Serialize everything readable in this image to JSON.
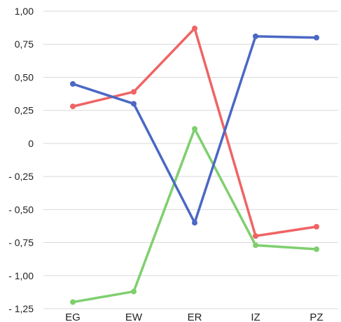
{
  "chart_data": {
    "type": "line",
    "categories": [
      "EG",
      "EW",
      "ER",
      "IZ",
      "PZ"
    ],
    "y_ticks": [
      "1,00",
      "0,75",
      "0,50",
      "0,25",
      "0",
      "- 0,25",
      "- 0,50",
      "- 0,75",
      "- 1,00",
      "- 1,25"
    ],
    "y_tick_values": [
      1.0,
      0.75,
      0.5,
      0.25,
      0,
      -0.25,
      -0.5,
      -0.75,
      -1.0,
      -1.25
    ],
    "ylim": [
      -1.25,
      1.0
    ],
    "grid": true,
    "legend": "none",
    "series": [
      {
        "color": "#4a68c4",
        "values": [
          0.45,
          0.3,
          -0.6,
          0.81,
          0.8
        ]
      },
      {
        "color": "#ef6464",
        "values": [
          0.28,
          0.39,
          0.87,
          -0.7,
          -0.63
        ]
      },
      {
        "color": "#7fcf6f",
        "values": [
          -1.2,
          -1.12,
          0.11,
          -0.77,
          -0.8
        ]
      }
    ]
  }
}
